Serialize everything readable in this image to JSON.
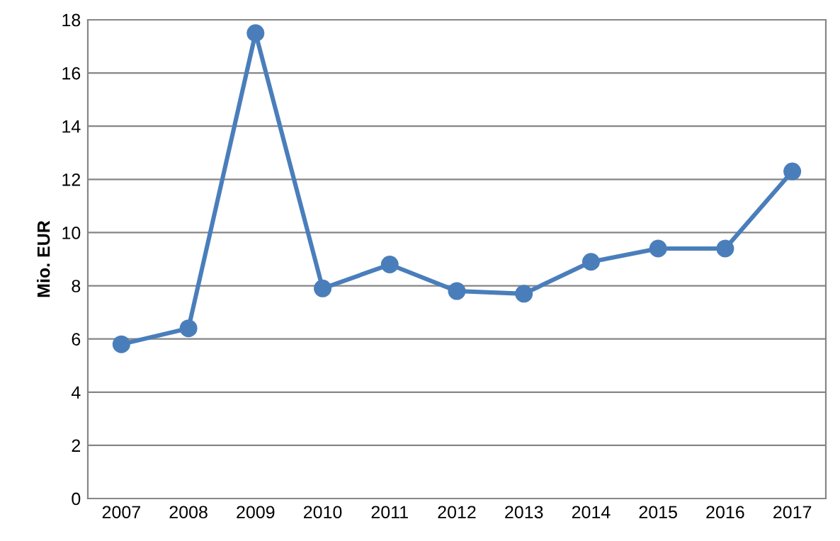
{
  "chart_data": {
    "type": "line",
    "ylabel": "Mio. EUR",
    "categories": [
      "2007",
      "2008",
      "2009",
      "2010",
      "2011",
      "2012",
      "2013",
      "2014",
      "2015",
      "2016",
      "2017"
    ],
    "series": [
      {
        "color": "#4a7ebb",
        "values": [
          5.8,
          6.4,
          17.5,
          7.9,
          8.8,
          7.8,
          7.7,
          8.9,
          9.4,
          9.4,
          12.3
        ]
      }
    ],
    "ylim": [
      0,
      18
    ],
    "yticks": [
      0,
      2,
      4,
      6,
      8,
      10,
      12,
      14,
      16,
      18
    ],
    "grid": "y",
    "marker": "circle",
    "line_style": "solid"
  }
}
